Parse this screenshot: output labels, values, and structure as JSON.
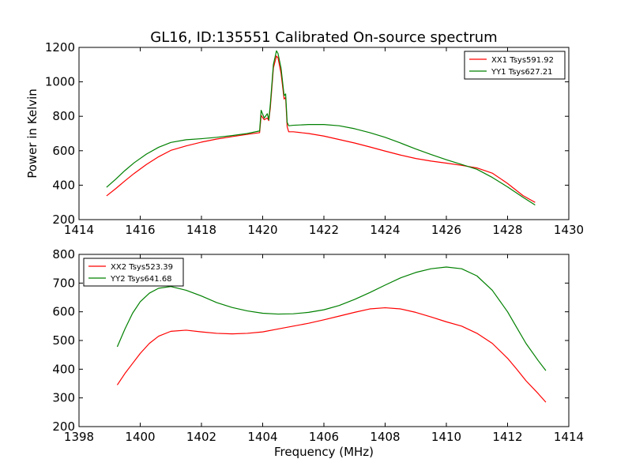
{
  "figure": {
    "title": "GL16, ID:135551 Calibrated On-source spectrum",
    "ylabel": "Power in Kelvin",
    "xlabel": "Frequency (MHz)"
  },
  "chart_data": [
    {
      "type": "line",
      "title": "GL16, ID:135551 Calibrated On-source spectrum",
      "ylabel": "Power in Kelvin",
      "xlabel": "",
      "xlim": [
        1414,
        1430
      ],
      "ylim": [
        200,
        1200
      ],
      "xticks": [
        "1414",
        "1416",
        "1418",
        "1420",
        "1422",
        "1424",
        "1426",
        "1428",
        "1430"
      ],
      "yticks": [
        "200",
        "400",
        "600",
        "800",
        "1000",
        "1200"
      ],
      "grid": false,
      "legend_position": "top-right",
      "series": [
        {
          "name": "XX1 Tsys591.92",
          "color": "#ff0000",
          "x": [
            1414.9,
            1415.2,
            1415.5,
            1415.8,
            1416.2,
            1416.6,
            1417.0,
            1417.5,
            1418.0,
            1418.5,
            1419.0,
            1419.5,
            1419.9,
            1419.95,
            1420.05,
            1420.15,
            1420.2,
            1420.25,
            1420.35,
            1420.45,
            1420.5,
            1420.6,
            1420.7,
            1420.75,
            1420.8,
            1420.85,
            1421.0,
            1421.5,
            1422.0,
            1422.5,
            1423.0,
            1423.5,
            1424.0,
            1424.5,
            1425.0,
            1425.5,
            1426.0,
            1426.5,
            1427.0,
            1427.5,
            1428.0,
            1428.5,
            1428.9
          ],
          "y": [
            338,
            380,
            425,
            468,
            520,
            565,
            602,
            628,
            650,
            668,
            682,
            695,
            705,
            805,
            780,
            790,
            775,
            850,
            1080,
            1150,
            1140,
            1050,
            900,
            910,
            740,
            710,
            710,
            700,
            685,
            665,
            645,
            622,
            598,
            575,
            555,
            540,
            528,
            515,
            500,
            470,
            410,
            340,
            300
          ]
        },
        {
          "name": "YY1 Tsys627.21",
          "color": "#008000",
          "x": [
            1414.9,
            1415.2,
            1415.5,
            1415.8,
            1416.2,
            1416.6,
            1417.0,
            1417.5,
            1418.0,
            1418.5,
            1419.0,
            1419.5,
            1419.9,
            1419.95,
            1420.05,
            1420.15,
            1420.2,
            1420.25,
            1420.35,
            1420.45,
            1420.5,
            1420.6,
            1420.7,
            1420.75,
            1420.8,
            1420.85,
            1421.0,
            1421.5,
            1422.0,
            1422.5,
            1423.0,
            1423.5,
            1424.0,
            1424.5,
            1425.0,
            1425.5,
            1426.0,
            1426.5,
            1427.0,
            1427.5,
            1428.0,
            1428.5,
            1428.9
          ],
          "y": [
            388,
            435,
            485,
            530,
            580,
            620,
            648,
            664,
            670,
            678,
            688,
            700,
            715,
            835,
            790,
            815,
            780,
            870,
            1100,
            1180,
            1165,
            1080,
            920,
            930,
            765,
            745,
            748,
            752,
            752,
            745,
            728,
            705,
            678,
            645,
            610,
            578,
            548,
            520,
            492,
            445,
            390,
            330,
            285
          ]
        }
      ]
    },
    {
      "type": "line",
      "title": "",
      "ylabel": "",
      "xlabel": "Frequency (MHz)",
      "xlim": [
        1398,
        1414
      ],
      "ylim": [
        200,
        800
      ],
      "xticks": [
        "1398",
        "1400",
        "1402",
        "1404",
        "1406",
        "1408",
        "1410",
        "1412",
        "1414"
      ],
      "yticks": [
        "200",
        "300",
        "400",
        "500",
        "600",
        "700",
        "800"
      ],
      "grid": false,
      "legend_position": "top-left",
      "series": [
        {
          "name": "XX2 Tsys523.39",
          "color": "#ff0000",
          "x": [
            1399.25,
            1399.5,
            1399.75,
            1400.0,
            1400.3,
            1400.6,
            1401.0,
            1401.5,
            1402.0,
            1402.5,
            1403.0,
            1403.5,
            1404.0,
            1404.5,
            1405.0,
            1405.5,
            1406.0,
            1406.5,
            1407.0,
            1407.5,
            1408.0,
            1408.5,
            1409.0,
            1409.5,
            1410.0,
            1410.5,
            1411.0,
            1411.5,
            1412.0,
            1412.3,
            1412.6,
            1413.0,
            1413.25
          ],
          "y": [
            345,
            385,
            420,
            455,
            490,
            515,
            532,
            536,
            530,
            525,
            523,
            525,
            530,
            540,
            550,
            560,
            572,
            585,
            598,
            610,
            614,
            610,
            598,
            582,
            565,
            550,
            525,
            490,
            438,
            400,
            360,
            315,
            285
          ]
        },
        {
          "name": "YY2 Tsys641.68",
          "color": "#008000",
          "x": [
            1399.25,
            1399.5,
            1399.75,
            1400.0,
            1400.3,
            1400.6,
            1401.0,
            1401.5,
            1402.0,
            1402.5,
            1403.0,
            1403.5,
            1404.0,
            1404.5,
            1405.0,
            1405.5,
            1406.0,
            1406.5,
            1407.0,
            1407.5,
            1408.0,
            1408.5,
            1409.0,
            1409.5,
            1410.0,
            1410.5,
            1411.0,
            1411.5,
            1412.0,
            1412.3,
            1412.6,
            1413.0,
            1413.25
          ],
          "y": [
            478,
            540,
            595,
            635,
            665,
            682,
            688,
            675,
            655,
            632,
            615,
            603,
            595,
            592,
            593,
            598,
            607,
            622,
            643,
            667,
            693,
            718,
            737,
            750,
            756,
            750,
            725,
            675,
            600,
            545,
            490,
            430,
            395
          ]
        }
      ]
    }
  ]
}
